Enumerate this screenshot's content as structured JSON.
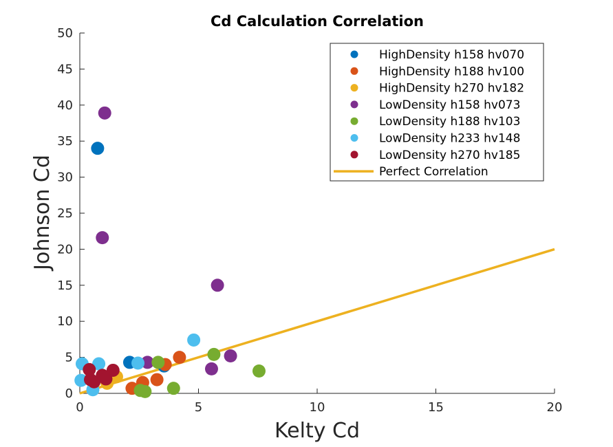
{
  "chart_data": {
    "type": "scatter",
    "title": "Cd Calculation Correlation",
    "xlabel": "Kelty Cd",
    "ylabel": "Johnson Cd",
    "xlim": [
      0,
      20
    ],
    "ylim": [
      0,
      50
    ],
    "xticks": [
      "0",
      "5",
      "10",
      "15",
      "20"
    ],
    "yticks": [
      "0",
      "5",
      "10",
      "15",
      "20",
      "25",
      "30",
      "35",
      "40",
      "45",
      "50"
    ],
    "grid": false,
    "legend_position": "top-right",
    "series": [
      {
        "name": "HighDensity h158 hv070",
        "color": "#0072BD",
        "points": [
          [
            0.75,
            34.0
          ],
          [
            2.1,
            4.3
          ],
          [
            3.55,
            3.8
          ]
        ]
      },
      {
        "name": "HighDensity h188 hv100",
        "color": "#D95319",
        "points": [
          [
            2.2,
            0.7
          ],
          [
            2.65,
            1.5
          ],
          [
            3.25,
            1.9
          ],
          [
            3.6,
            4.0
          ],
          [
            4.2,
            5.0
          ]
        ]
      },
      {
        "name": "HighDensity h270 hv182",
        "color": "#EDB120",
        "points": [
          [
            1.15,
            1.4
          ],
          [
            1.55,
            2.3
          ]
        ]
      },
      {
        "name": "LowDensity h158 hv073",
        "color": "#7E2F8E",
        "points": [
          [
            1.05,
            38.9
          ],
          [
            0.95,
            21.6
          ],
          [
            5.8,
            15.0
          ],
          [
            6.35,
            5.2
          ],
          [
            5.55,
            3.4
          ],
          [
            2.85,
            4.3
          ]
        ]
      },
      {
        "name": "LowDensity h188 hv103",
        "color": "#77AC30",
        "points": [
          [
            2.55,
            0.4
          ],
          [
            2.75,
            0.25
          ],
          [
            3.3,
            4.3
          ],
          [
            3.95,
            0.7
          ],
          [
            5.65,
            5.4
          ],
          [
            7.55,
            3.1
          ]
        ]
      },
      {
        "name": "LowDensity h233 hv148",
        "color": "#4DBEEE",
        "points": [
          [
            0.1,
            4.1
          ],
          [
            0.05,
            1.8
          ],
          [
            0.55,
            0.5
          ],
          [
            0.8,
            4.1
          ],
          [
            2.45,
            4.2
          ],
          [
            4.8,
            7.4
          ]
        ]
      },
      {
        "name": "LowDensity h270 hv185",
        "color": "#A2142F",
        "points": [
          [
            0.4,
            3.3
          ],
          [
            0.45,
            1.9
          ],
          [
            0.6,
            1.6
          ],
          [
            0.95,
            2.5
          ],
          [
            1.1,
            2.0
          ],
          [
            1.4,
            3.2
          ]
        ]
      }
    ],
    "reference_line": {
      "name": "Perfect Correlation",
      "color": "#EDB120",
      "points": [
        [
          0,
          0
        ],
        [
          20,
          20
        ]
      ]
    }
  }
}
